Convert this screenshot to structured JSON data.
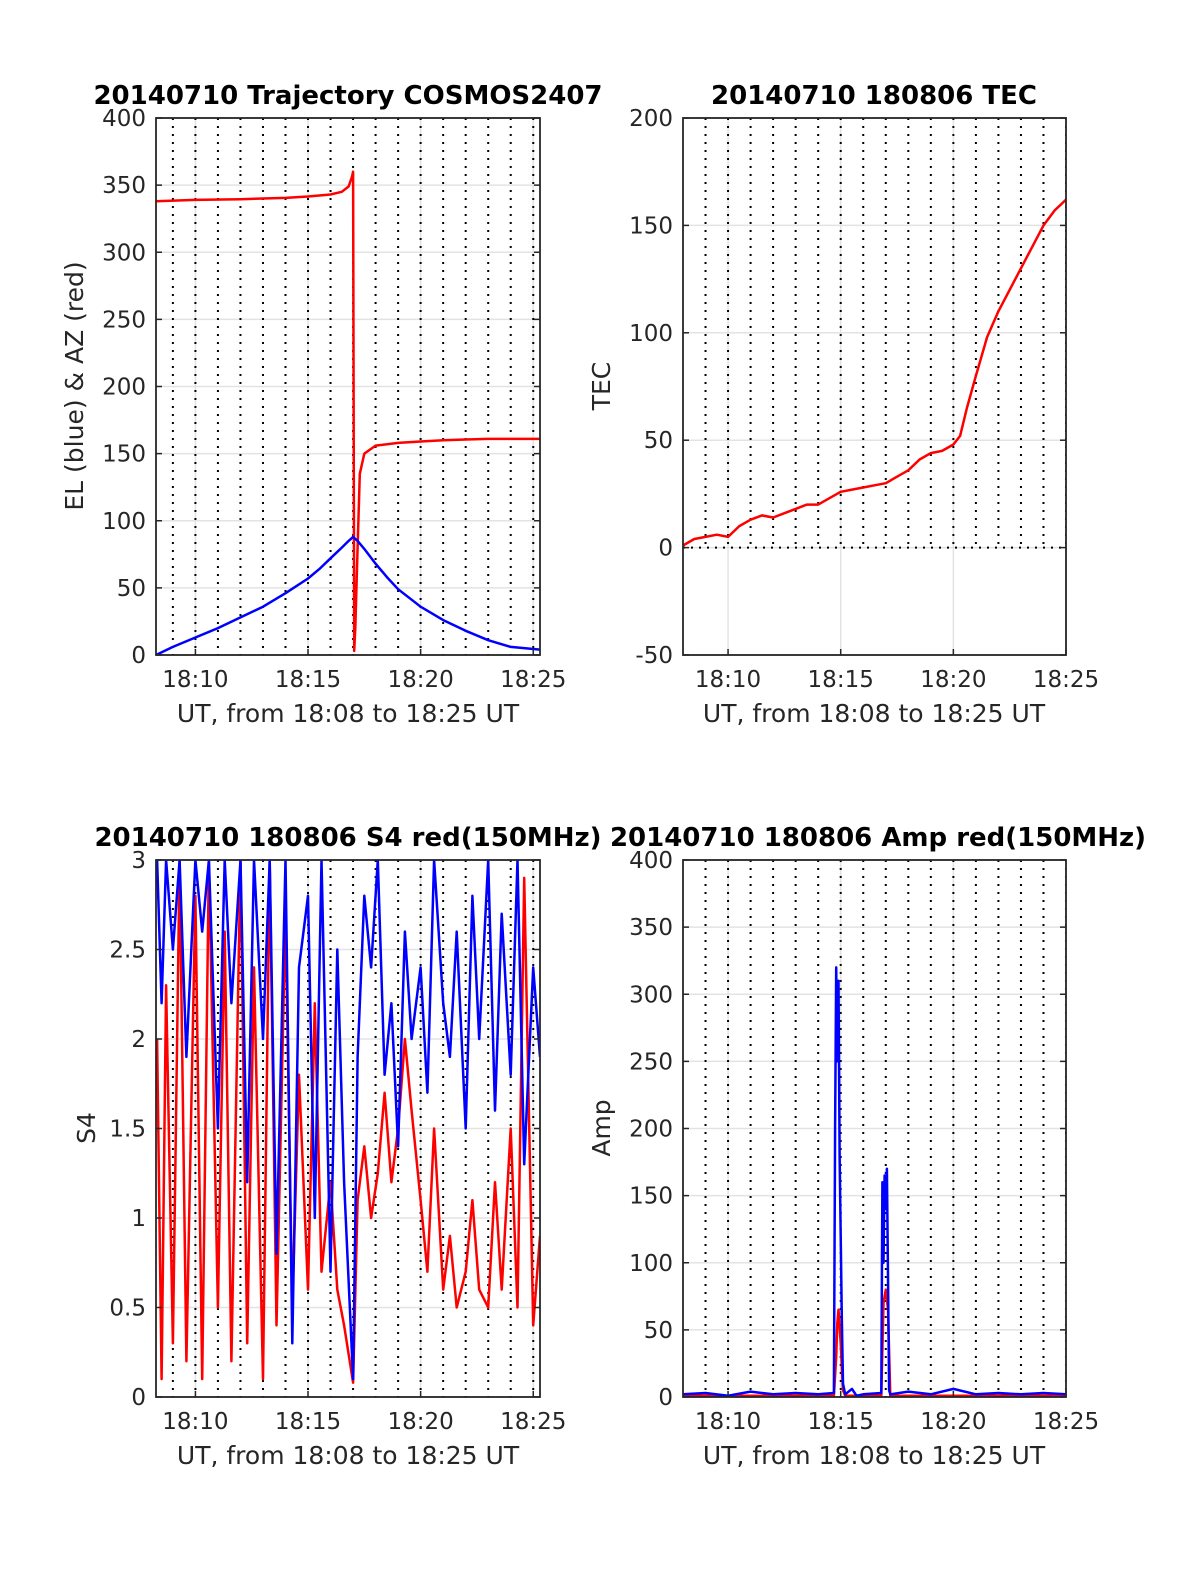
{
  "chart_data": [
    {
      "id": "trajectory",
      "type": "line",
      "title": "20140710 Trajectory COSMOS2407",
      "xlabel": "UT, from 18:08 to 18:25 UT",
      "ylabel": "EL (blue) & AZ (red)",
      "xlim": [
        8.25,
        25.3
      ],
      "ylim": [
        0,
        400
      ],
      "xtick_values": [
        10,
        15,
        20,
        25
      ],
      "xtick_labels": [
        "18:10",
        "18:15",
        "18:20",
        "18:25"
      ],
      "yticks": [
        0,
        50,
        100,
        150,
        200,
        250,
        300,
        350,
        400
      ],
      "ytick_labels": [
        "0",
        "50",
        "100",
        "150",
        "200",
        "250",
        "300",
        "350",
        "400"
      ],
      "dotted_minutes": [
        9,
        10,
        11,
        12,
        13,
        14,
        15,
        16,
        17,
        18,
        19,
        20,
        21,
        22,
        23,
        24,
        25
      ],
      "series": [
        {
          "name": "AZ",
          "color": "#ff0000",
          "x": [
            8.25,
            10,
            12,
            14,
            15,
            16,
            16.5,
            16.8,
            16.95,
            17.0,
            17.05,
            17.1,
            17.2,
            17.3,
            17.5,
            18,
            19,
            20,
            21,
            22,
            23,
            24,
            25.3
          ],
          "y": [
            338,
            339,
            339.5,
            340.5,
            341.5,
            343,
            345,
            349,
            356,
            360,
            3,
            20,
            80,
            135,
            150,
            156,
            158,
            159,
            160,
            160.5,
            161,
            161,
            161
          ]
        },
        {
          "name": "EL",
          "color": "#0000ff",
          "x": [
            8.25,
            9,
            10,
            11,
            12,
            13,
            14,
            15,
            15.5,
            16,
            16.5,
            16.8,
            17.0,
            17.2,
            17.5,
            18,
            18.5,
            19,
            20,
            21,
            22,
            23,
            24,
            25.3
          ],
          "y": [
            0,
            6,
            13,
            20,
            28,
            36,
            46,
            57,
            64,
            72,
            80,
            85,
            88,
            85,
            79,
            68,
            58,
            49,
            36,
            26,
            18,
            11,
            6,
            4
          ]
        }
      ]
    },
    {
      "id": "tec",
      "type": "line",
      "title": "20140710 180806 TEC",
      "xlabel": "UT, from 18:08 to 18:25 UT",
      "ylabel": "TEC",
      "xlim": [
        8.0,
        25.0
      ],
      "ylim": [
        -50,
        200
      ],
      "xtick_values": [
        10,
        15,
        20,
        25
      ],
      "xtick_labels": [
        "18:10",
        "18:15",
        "18:20",
        "18:25"
      ],
      "yticks": [
        -50,
        0,
        50,
        100,
        150,
        200
      ],
      "ytick_labels": [
        "-50",
        "0",
        "50",
        "100",
        "150",
        "200"
      ],
      "dotted_minutes": [
        9,
        10,
        11,
        12,
        13,
        14,
        15,
        16,
        17,
        18,
        19,
        20,
        21,
        22,
        23,
        24,
        25
      ],
      "dotted_ymin": 0,
      "series": [
        {
          "name": "TEC",
          "color": "#ff0000",
          "x": [
            8.0,
            8.5,
            9.0,
            9.5,
            10.0,
            10.5,
            11.0,
            11.5,
            12.0,
            12.5,
            13.0,
            13.5,
            14.0,
            14.5,
            15.0,
            15.5,
            16.0,
            16.5,
            17.0,
            17.5,
            18.0,
            18.5,
            19.0,
            19.5,
            20.0,
            20.3,
            20.6,
            21.0,
            21.5,
            22.0,
            22.5,
            23.0,
            23.5,
            24.0,
            24.5,
            25.0
          ],
          "y": [
            1,
            4,
            5,
            6,
            5,
            10,
            13,
            15,
            14,
            16,
            18,
            20,
            20,
            23,
            26,
            27,
            28,
            29,
            30,
            33,
            36,
            41,
            44,
            45,
            48,
            52,
            65,
            80,
            98,
            110,
            120,
            130,
            140,
            150,
            157,
            162
          ]
        }
      ]
    },
    {
      "id": "s4",
      "type": "line",
      "title": "20140710 180806 S4 red(150MHz)",
      "xlabel": "UT, from 18:08 to 18:25 UT",
      "ylabel": "S4",
      "xlim": [
        8.25,
        25.3
      ],
      "ylim": [
        0,
        3
      ],
      "xtick_values": [
        10,
        15,
        20,
        25
      ],
      "xtick_labels": [
        "18:10",
        "18:15",
        "18:20",
        "18:25"
      ],
      "yticks": [
        0,
        0.5,
        1,
        1.5,
        2,
        2.5,
        3
      ],
      "ytick_labels": [
        "0",
        "0.5",
        "1",
        "1.5",
        "2",
        "2.5",
        "3"
      ],
      "dotted_minutes": [
        9,
        10,
        11,
        12,
        13,
        14,
        15,
        16,
        17,
        18,
        19,
        20,
        21,
        22,
        23,
        24,
        25
      ],
      "series": [
        {
          "name": "red (150MHz)",
          "color": "#ff0000",
          "x": [
            8.3,
            8.5,
            8.7,
            9.0,
            9.3,
            9.6,
            10.0,
            10.3,
            10.6,
            11.0,
            11.3,
            11.6,
            12.0,
            12.3,
            12.6,
            13.0,
            13.3,
            13.6,
            14.0,
            14.3,
            14.6,
            15.0,
            15.3,
            15.6,
            16.0,
            16.3,
            16.6,
            17.0,
            17.2,
            17.5,
            17.8,
            18.1,
            18.4,
            18.7,
            19.0,
            19.3,
            19.6,
            20.0,
            20.3,
            20.6,
            21.0,
            21.3,
            21.6,
            22.0,
            22.3,
            22.6,
            23.0,
            23.3,
            23.6,
            24.0,
            24.3,
            24.6,
            25.0,
            25.3
          ],
          "y": [
            2.0,
            0.1,
            2.3,
            0.3,
            3.0,
            0.2,
            2.8,
            0.1,
            3.0,
            0.5,
            2.6,
            0.2,
            3.0,
            0.3,
            2.4,
            0.1,
            3.0,
            0.4,
            2.7,
            0.5,
            1.8,
            0.6,
            2.2,
            0.7,
            1.2,
            0.6,
            0.4,
            0.08,
            1.1,
            1.4,
            1.0,
            1.25,
            1.7,
            1.2,
            1.5,
            2.0,
            1.6,
            1.1,
            0.7,
            1.5,
            0.6,
            0.9,
            0.5,
            0.7,
            1.1,
            0.6,
            0.5,
            1.2,
            0.6,
            1.5,
            0.5,
            2.9,
            0.4,
            0.9
          ]
        },
        {
          "name": "blue",
          "color": "#0000ff",
          "x": [
            8.3,
            8.5,
            8.7,
            9.0,
            9.3,
            9.6,
            10.0,
            10.3,
            10.6,
            11.0,
            11.3,
            11.6,
            12.0,
            12.3,
            12.6,
            13.0,
            13.3,
            13.6,
            14.0,
            14.3,
            14.6,
            15.0,
            15.3,
            15.6,
            16.0,
            16.3,
            16.6,
            17.0,
            17.2,
            17.5,
            17.8,
            18.1,
            18.4,
            18.7,
            19.0,
            19.3,
            19.6,
            20.0,
            20.3,
            20.6,
            21.0,
            21.3,
            21.6,
            22.0,
            22.3,
            22.6,
            23.0,
            23.3,
            23.6,
            24.0,
            24.3,
            24.6,
            25.0,
            25.3
          ],
          "y": [
            3.0,
            2.2,
            3.0,
            2.5,
            3.0,
            1.9,
            3.0,
            2.6,
            3.0,
            1.5,
            3.0,
            2.2,
            3.0,
            1.2,
            3.0,
            2.0,
            3.0,
            0.8,
            3.0,
            0.3,
            2.4,
            2.8,
            1.0,
            3.0,
            0.7,
            2.5,
            1.2,
            0.1,
            1.9,
            2.8,
            2.4,
            3.0,
            1.8,
            2.2,
            1.4,
            2.6,
            2.0,
            2.4,
            1.7,
            3.0,
            2.2,
            1.9,
            2.6,
            1.5,
            2.8,
            2.0,
            3.0,
            1.6,
            2.7,
            1.8,
            3.0,
            1.3,
            2.4,
            1.9
          ]
        }
      ]
    },
    {
      "id": "amp",
      "type": "line",
      "title": "20140710 180806 Amp red(150MHz)",
      "xlabel": "UT, from 18:08 to 18:25 UT",
      "ylabel": "Amp",
      "xlim": [
        8.0,
        25.0
      ],
      "ylim": [
        0,
        400
      ],
      "xtick_values": [
        10,
        15,
        20,
        25
      ],
      "xtick_labels": [
        "18:10",
        "18:15",
        "18:20",
        "18:25"
      ],
      "yticks": [
        0,
        50,
        100,
        150,
        200,
        250,
        300,
        350,
        400
      ],
      "ytick_labels": [
        "0",
        "50",
        "100",
        "150",
        "200",
        "250",
        "300",
        "350",
        "400"
      ],
      "dotted_minutes": [
        9,
        10,
        11,
        12,
        13,
        14,
        15,
        16,
        17,
        18,
        19,
        20,
        21,
        22,
        23,
        24,
        25
      ],
      "series": [
        {
          "name": "red (150MHz)",
          "color": "#ff0000",
          "x": [
            8.0,
            14.7,
            14.8,
            14.85,
            14.9,
            15.0,
            15.1,
            15.2,
            16.8,
            16.9,
            17.0,
            17.1,
            17.2,
            25.0
          ],
          "y": [
            1,
            1,
            30,
            55,
            65,
            40,
            5,
            1,
            1,
            70,
            80,
            65,
            1,
            1
          ]
        },
        {
          "name": "blue",
          "color": "#0000ff",
          "x": [
            8.0,
            9.0,
            10.0,
            11.0,
            12.0,
            13.0,
            14.0,
            14.7,
            14.75,
            14.8,
            14.85,
            14.9,
            14.95,
            15.0,
            15.05,
            15.1,
            15.2,
            15.5,
            15.7,
            16.0,
            16.8,
            16.85,
            16.9,
            16.95,
            17.0,
            17.05,
            17.1,
            17.15,
            17.2,
            18.0,
            19.0,
            20.0,
            21.0,
            22.0,
            23.0,
            24.0,
            25.0
          ],
          "y": [
            2,
            3,
            1,
            4,
            2,
            3,
            2,
            3,
            200,
            320,
            250,
            310,
            180,
            120,
            60,
            10,
            2,
            6,
            1,
            2,
            3,
            160,
            100,
            165,
            140,
            170,
            90,
            5,
            2,
            4,
            2,
            6,
            2,
            3,
            2,
            3,
            2
          ]
        }
      ]
    }
  ]
}
